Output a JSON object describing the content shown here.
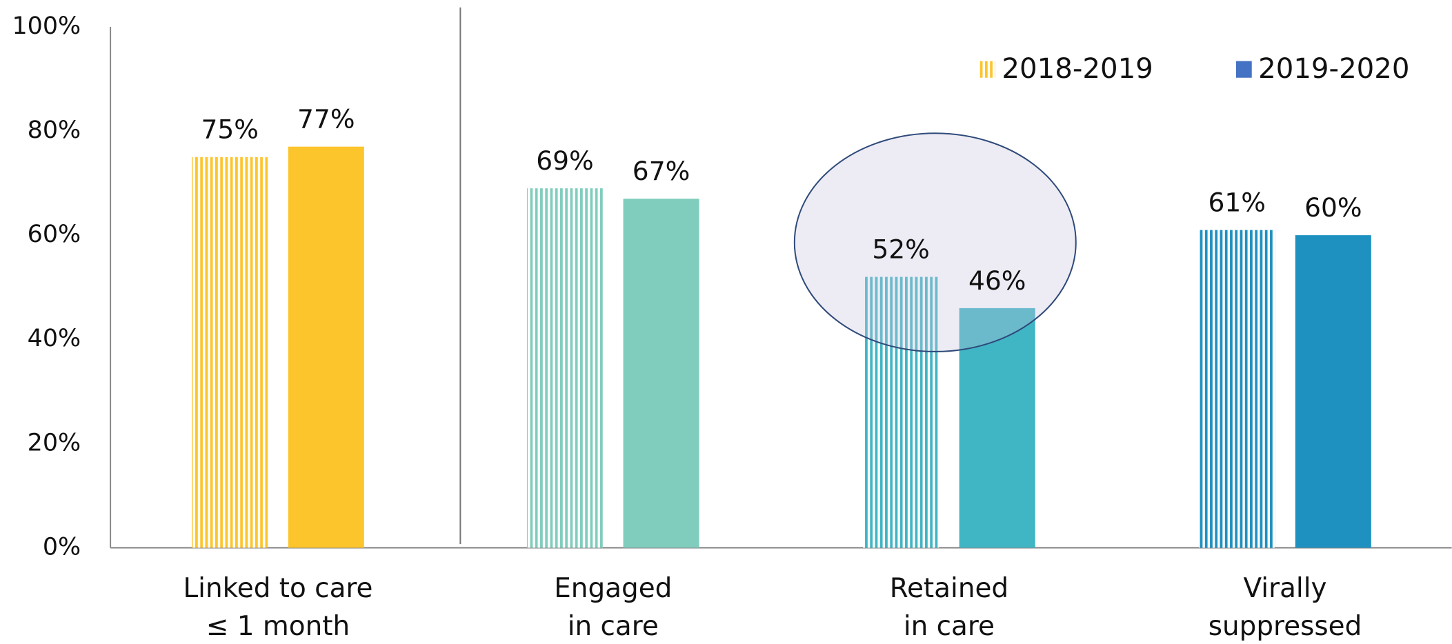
{
  "chart_data": {
    "type": "bar",
    "categories": [
      "Linked to care\n≤ 1 month",
      "Engaged\nin care",
      "Retained\nin care",
      "Virally\nsuppressed"
    ],
    "category_colors": [
      "#fdc52c",
      "#80cdbd",
      "#40b5c4",
      "#1e91c0"
    ],
    "series": [
      {
        "name": "2018-2019",
        "color": "#fdc52c",
        "pattern": "stripes",
        "values": [
          75,
          69,
          52,
          61
        ],
        "value_labels": [
          "75%",
          "69%",
          "52%",
          "61%"
        ]
      },
      {
        "name": "2019-2020",
        "color": "#4472c4",
        "pattern": "solid",
        "values": [
          77,
          67,
          46,
          60
        ],
        "value_labels": [
          "77%",
          "67%",
          "46%",
          "60%"
        ]
      }
    ],
    "ylim": [
      0,
      100
    ],
    "yticks": [
      {
        "value": 0,
        "label": "0%"
      },
      {
        "value": 20,
        "label": "20%"
      },
      {
        "value": 40,
        "label": "40%"
      },
      {
        "value": 60,
        "label": "60%"
      },
      {
        "value": 80,
        "label": "80%"
      },
      {
        "value": 100,
        "label": "100%"
      }
    ],
    "grid": false,
    "legend": "top-right"
  }
}
